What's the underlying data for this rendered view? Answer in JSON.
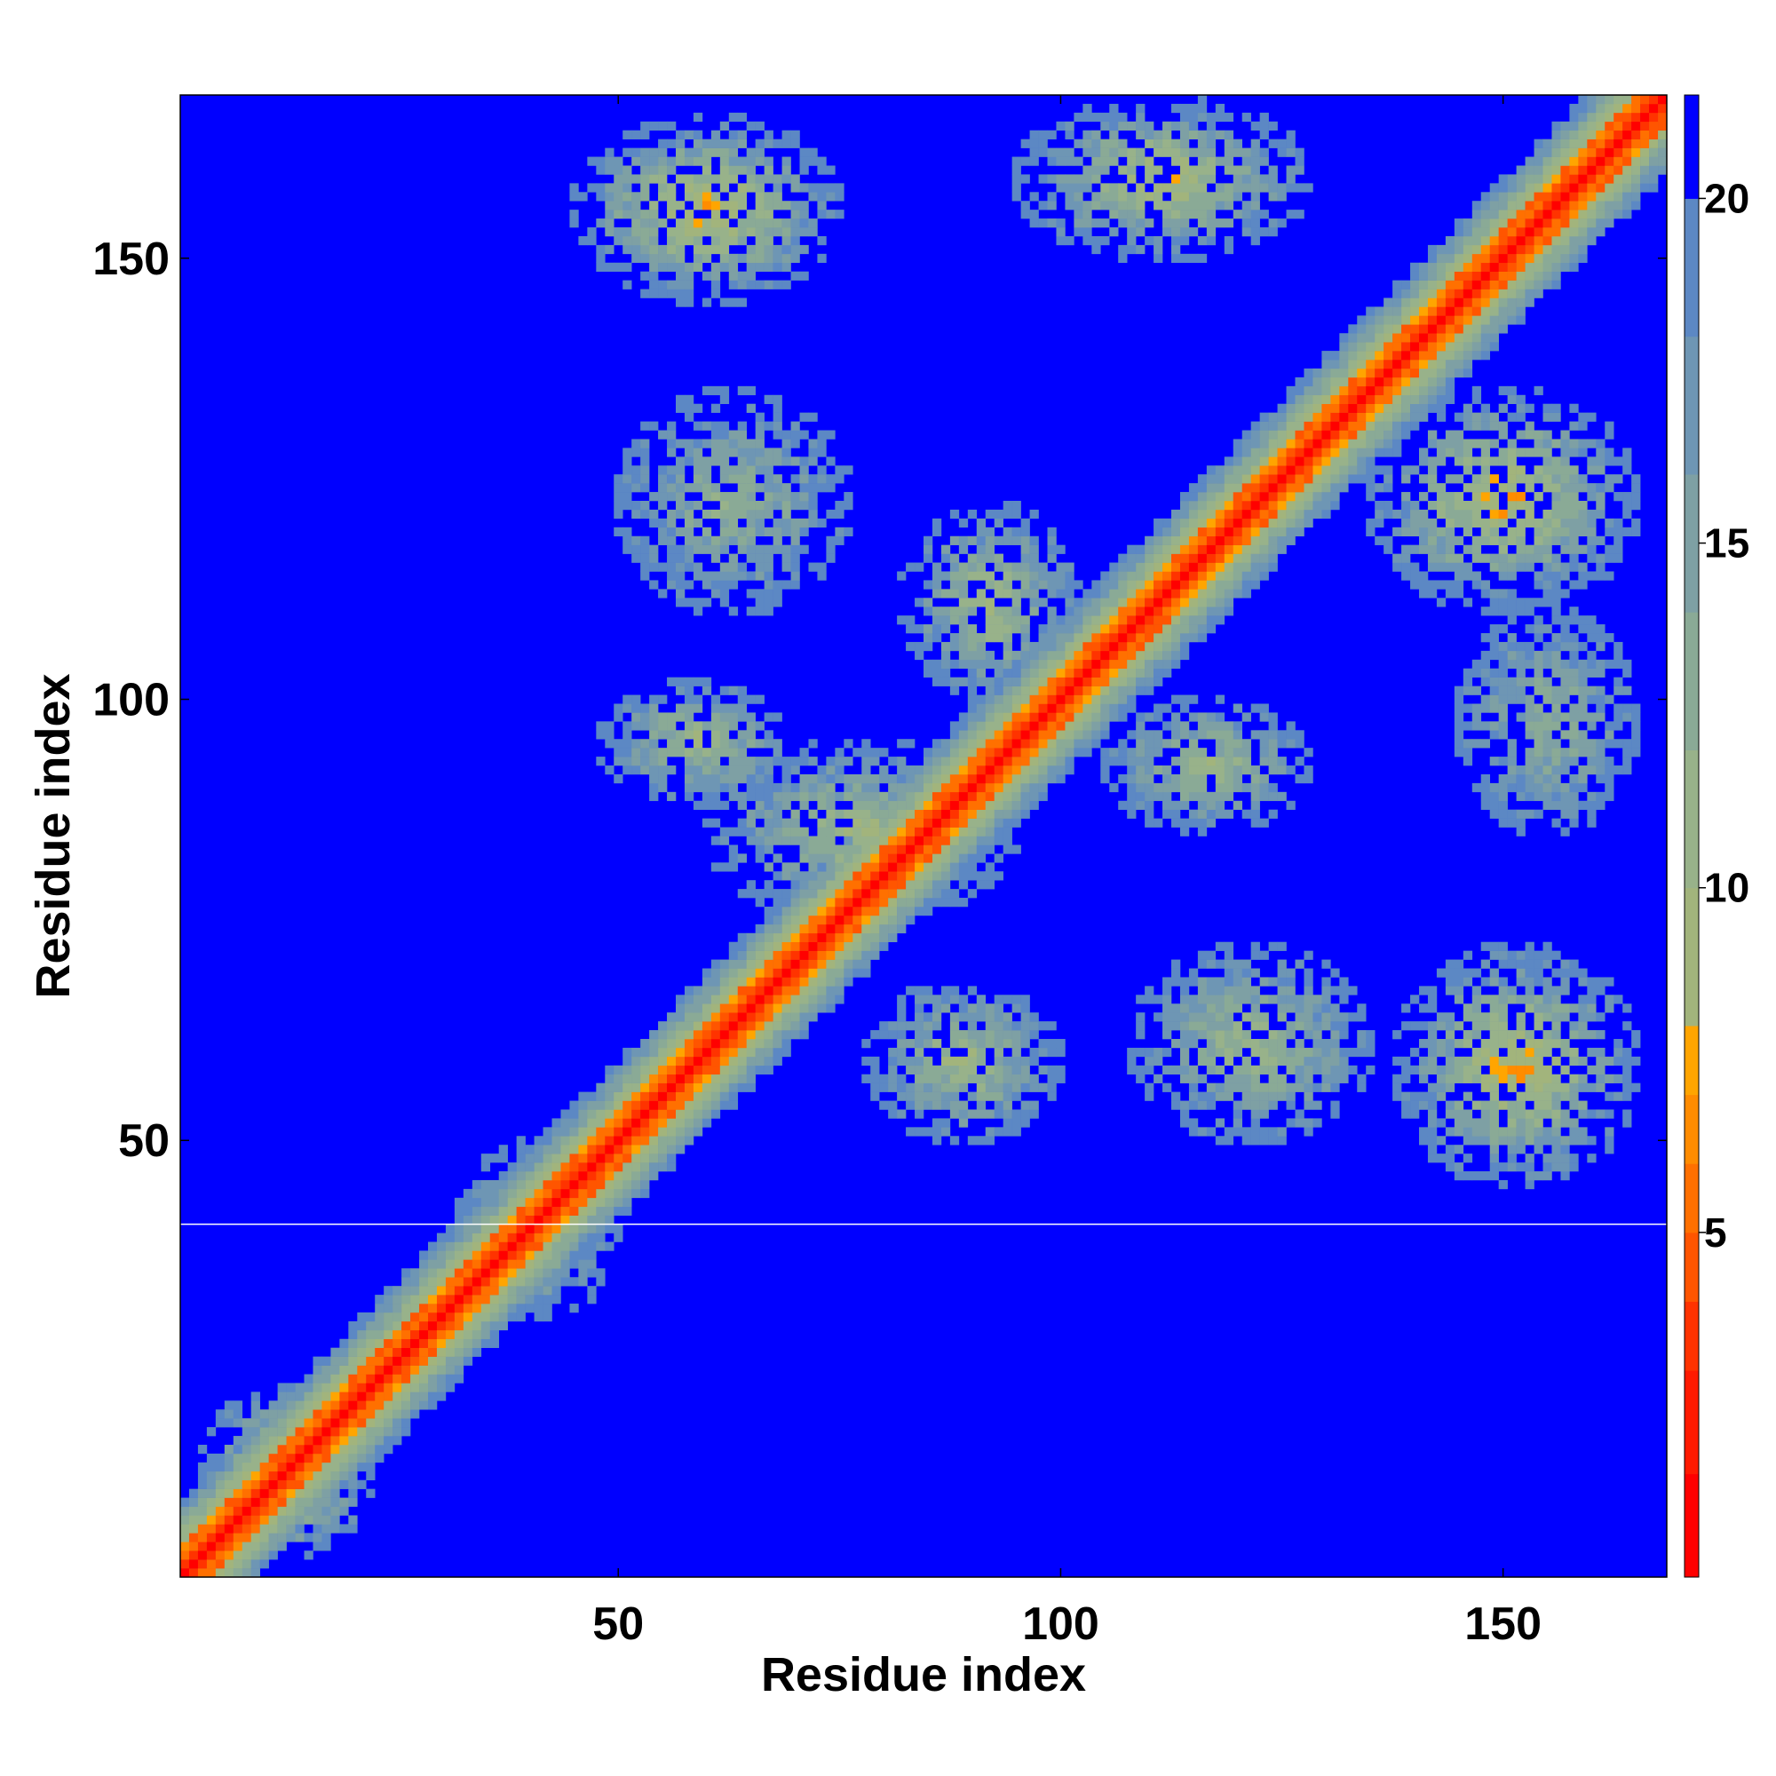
{
  "chart_data": {
    "type": "heatmap",
    "title": "",
    "xlabel": "Residue index",
    "ylabel": "Residue index",
    "xlim": [
      1,
      168
    ],
    "ylim": [
      1,
      168
    ],
    "x_ticks": [
      50,
      100,
      150
    ],
    "y_ticks": [
      50,
      100,
      150
    ],
    "colorbar": {
      "range": [
        0,
        21.5
      ],
      "ticks": [
        5,
        10,
        15,
        20
      ],
      "levels": [
        {
          "max": 1.5,
          "color": "#ff0000"
        },
        {
          "max": 3.0,
          "color": "#ff1a00"
        },
        {
          "max": 4.0,
          "color": "#ff3300"
        },
        {
          "max": 5.0,
          "color": "#ff5500"
        },
        {
          "max": 6.0,
          "color": "#ff7000"
        },
        {
          "max": 7.0,
          "color": "#ff8c00"
        },
        {
          "max": 8.0,
          "color": "#ffa500"
        },
        {
          "max": 10.0,
          "color": "#a2b47c"
        },
        {
          "max": 12.0,
          "color": "#98b28a"
        },
        {
          "max": 14.0,
          "color": "#8aaa96"
        },
        {
          "max": 16.0,
          "color": "#7ea0a4"
        },
        {
          "max": 18.0,
          "color": "#6e96b4"
        },
        {
          "max": 20.0,
          "color": "#5c88c4"
        },
        {
          "max": 21.5,
          "color": "#0000ff"
        }
      ]
    },
    "cap_value": 21.5,
    "diagonal_band": {
      "core_distance": 1.0,
      "band_growth_per_residue": 2.1,
      "band_halfwidth": 10
    },
    "horizontal_line_at_y": 40.5,
    "contact_blobs": [
      {
        "x": [
          3,
          22
        ],
        "y": [
          3,
          22
        ],
        "min_value": 7
      },
      {
        "x": [
          32,
          50
        ],
        "y": [
          30,
          50
        ],
        "min_value": 12
      },
      {
        "x": [
          45,
          75
        ],
        "y": [
          145,
          166
        ],
        "min_value": 7
      },
      {
        "x": [
          50,
          76
        ],
        "y": [
          110,
          135
        ],
        "min_value": 12
      },
      {
        "x": [
          48,
          70
        ],
        "y": [
          88,
          102
        ],
        "min_value": 10
      },
      {
        "x": [
          60,
          95
        ],
        "y": [
          75,
          95
        ],
        "min_value": 10
      },
      {
        "x": [
          78,
          100
        ],
        "y": [
          50,
          68
        ],
        "min_value": 10
      },
      {
        "x": [
          82,
          102
        ],
        "y": [
          100,
          122
        ],
        "min_value": 10
      },
      {
        "x": [
          95,
          128
        ],
        "y": [
          150,
          168
        ],
        "min_value": 8
      },
      {
        "x": [
          105,
          128
        ],
        "y": [
          85,
          100
        ],
        "min_value": 10
      },
      {
        "x": [
          108,
          135
        ],
        "y": [
          50,
          72
        ],
        "min_value": 10
      },
      {
        "x": [
          135,
          165
        ],
        "y": [
          110,
          135
        ],
        "min_value": 7
      },
      {
        "x": [
          145,
          165
        ],
        "y": [
          85,
          110
        ],
        "min_value": 12
      },
      {
        "x": [
          138,
          165
        ],
        "y": [
          45,
          72
        ],
        "min_value": 7
      }
    ]
  }
}
